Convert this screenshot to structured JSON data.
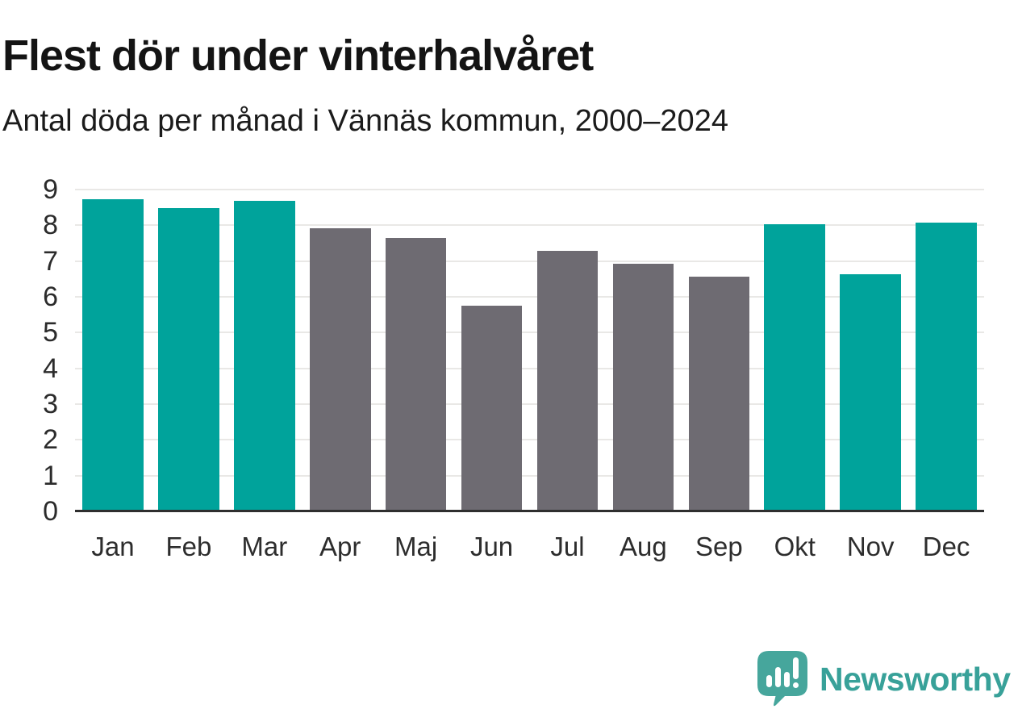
{
  "page": {
    "title": "Flest dör under vinterhalvåret",
    "subtitle": "Antal döda per månad i Vännäs kommun, 2000–2024"
  },
  "chart_data": {
    "type": "bar",
    "title": "Flest dör under vinterhalvåret",
    "subtitle": "Antal döda per månad i Vännäs kommun, 2000–2024",
    "categories": [
      "Jan",
      "Feb",
      "Mar",
      "Apr",
      "Maj",
      "Jun",
      "Jul",
      "Aug",
      "Sep",
      "Okt",
      "Nov",
      "Dec"
    ],
    "values": [
      8.72,
      8.48,
      8.68,
      7.92,
      7.64,
      5.76,
      7.28,
      6.92,
      6.56,
      8.04,
      6.64,
      8.08
    ],
    "bar_colors": [
      "#00a39b",
      "#00a39b",
      "#00a39b",
      "#6e6b72",
      "#6e6b72",
      "#6e6b72",
      "#6e6b72",
      "#6e6b72",
      "#6e6b72",
      "#00a39b",
      "#00a39b",
      "#00a39b"
    ],
    "highlighted_months": [
      "Jan",
      "Feb",
      "Mar",
      "Okt",
      "Nov",
      "Dec"
    ],
    "xlabel": "",
    "ylabel": "",
    "ylim": [
      0,
      9
    ],
    "yticks": [
      0,
      1,
      2,
      3,
      4,
      5,
      6,
      7,
      8,
      9
    ],
    "grid": true,
    "legend": false
  },
  "colors": {
    "winter_bar": "#00a39b",
    "summer_bar": "#6e6b72",
    "gridline": "#e9e8e6",
    "axis_line": "#2e2e2e",
    "logo_teal": "#38a199",
    "logo_icon_teal": "#46a69c"
  },
  "footer": {
    "brand": "Newsworthy",
    "logo_icon": "speech-bubble-bar-chart-exclamation"
  }
}
